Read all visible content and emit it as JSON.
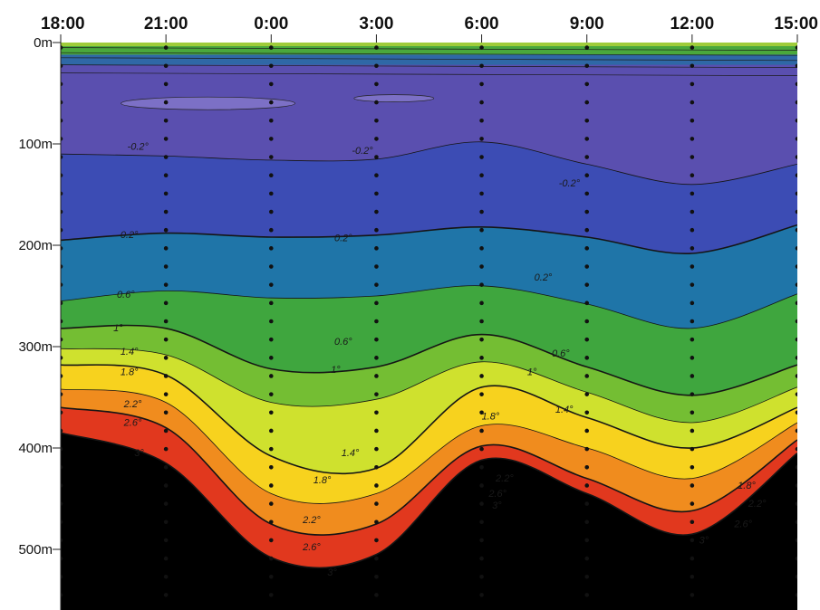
{
  "chart_data": {
    "type": "contour",
    "x_ticks": [
      "18:00",
      "21:00",
      "0:00",
      "3:00",
      "6:00",
      "9:00",
      "12:00",
      "15:00"
    ],
    "y_ticks": [
      "0m",
      "100m",
      "200m",
      "300m",
      "400m",
      "500m"
    ],
    "y_tick_values": [
      0,
      100,
      200,
      300,
      400,
      500
    ],
    "ylim": [
      0,
      570
    ],
    "xlim": [
      18,
      39
    ],
    "station_times": [
      18,
      21,
      24,
      27,
      30,
      33,
      36,
      39
    ],
    "level_colors": [
      {
        "min": -1.0,
        "max": -0.2,
        "color": "#5a4faf"
      },
      {
        "min": -0.2,
        "max": 0.6,
        "color": "#3c4cb4"
      },
      {
        "min": 0.6,
        "max": 1.0,
        "color": "#1f75a8"
      },
      {
        "min": 1.0,
        "max": 1.4,
        "color": "#3fa63e"
      },
      {
        "min": 1.4,
        "max": 1.8,
        "color": "#74be33"
      },
      {
        "min": 1.8,
        "max": 2.2,
        "color": "#cfe12e"
      },
      {
        "min": 2.2,
        "max": 2.6,
        "color": "#f7d21e"
      },
      {
        "min": 2.6,
        "max": 3.0,
        "color": "#f08c1e"
      },
      {
        "min": 3.0,
        "max": 4.0,
        "color": "#e1381e"
      }
    ],
    "isotherms": [
      {
        "label": "-0.2°",
        "value": -0.2,
        "depth_at_times": [
          110,
          112,
          116,
          115,
          98,
          120,
          140,
          120
        ]
      },
      {
        "label": "0.2°",
        "value": 0.2,
        "depth_at_times": [
          195,
          188,
          192,
          190,
          182,
          192,
          208,
          180
        ]
      },
      {
        "label": "0.6°",
        "value": 0.6,
        "depth_at_times": [
          255,
          245,
          252,
          250,
          240,
          258,
          282,
          248
        ]
      },
      {
        "label": "1°",
        "value": 1.0,
        "depth_at_times": [
          282,
          282,
          322,
          320,
          288,
          320,
          348,
          318
        ]
      },
      {
        "label": "1.4°",
        "value": 1.4,
        "depth_at_times": [
          302,
          308,
          355,
          352,
          315,
          345,
          375,
          340
        ]
      },
      {
        "label": "1.8°",
        "value": 1.8,
        "depth_at_times": [
          318,
          328,
          408,
          420,
          340,
          370,
          400,
          360
        ]
      },
      {
        "label": "2.2°",
        "value": 2.2,
        "depth_at_times": [
          342,
          355,
          445,
          445,
          378,
          400,
          430,
          375
        ]
      },
      {
        "label": "2.6°",
        "value": 2.6,
        "depth_at_times": [
          360,
          380,
          475,
          475,
          398,
          430,
          462,
          392
        ]
      },
      {
        "label": "3°",
        "value": 3.0,
        "depth_at_times": [
          385,
          415,
          508,
          505,
          412,
          445,
          485,
          405
        ]
      }
    ],
    "contour_labels": [
      {
        "text": "-0.2°",
        "t": 19.9,
        "d": 106
      },
      {
        "text": "-0.2°",
        "t": 26.3,
        "d": 110
      },
      {
        "text": "-0.2°",
        "t": 32.2,
        "d": 142
      },
      {
        "text": "0.2°",
        "t": 19.7,
        "d": 193
      },
      {
        "text": "0.2°",
        "t": 25.8,
        "d": 196
      },
      {
        "text": "0.2°",
        "t": 31.5,
        "d": 235
      },
      {
        "text": "0.6°",
        "t": 19.6,
        "d": 252
      },
      {
        "text": "0.6°",
        "t": 25.8,
        "d": 298
      },
      {
        "text": "0.6°",
        "t": 32.0,
        "d": 310
      },
      {
        "text": "1°",
        "t": 19.5,
        "d": 285
      },
      {
        "text": "1°",
        "t": 25.7,
        "d": 326
      },
      {
        "text": "1°",
        "t": 31.3,
        "d": 328
      },
      {
        "text": "1.4°",
        "t": 19.7,
        "d": 308
      },
      {
        "text": "1.4°",
        "t": 26.0,
        "d": 408
      },
      {
        "text": "1.4°",
        "t": 32.1,
        "d": 365
      },
      {
        "text": "1.8°",
        "t": 19.7,
        "d": 328
      },
      {
        "text": "1.8°",
        "t": 25.2,
        "d": 435
      },
      {
        "text": "1.8°",
        "t": 30.0,
        "d": 372
      },
      {
        "text": "1.8°",
        "t": 37.3,
        "d": 440
      },
      {
        "text": "2.2°",
        "t": 19.8,
        "d": 360
      },
      {
        "text": "2.2°",
        "t": 24.9,
        "d": 474
      },
      {
        "text": "2.2°",
        "t": 30.4,
        "d": 433
      },
      {
        "text": "2.2°",
        "t": 37.6,
        "d": 458
      },
      {
        "text": "2.6°",
        "t": 19.8,
        "d": 378
      },
      {
        "text": "2.6°",
        "t": 24.9,
        "d": 501
      },
      {
        "text": "2.6°",
        "t": 30.2,
        "d": 448
      },
      {
        "text": "2.6°",
        "t": 37.2,
        "d": 478
      },
      {
        "text": "3°",
        "t": 20.1,
        "d": 408
      },
      {
        "text": "3°",
        "t": 25.6,
        "d": 526
      },
      {
        "text": "3°",
        "t": 30.3,
        "d": 460
      },
      {
        "text": "3°",
        "t": 36.2,
        "d": 494
      }
    ],
    "surface_layer": {
      "description_free": true,
      "top_depth": 0,
      "green_depth": 12,
      "blue_start": 22
    },
    "title": "",
    "xlabel": "",
    "ylabel": ""
  }
}
